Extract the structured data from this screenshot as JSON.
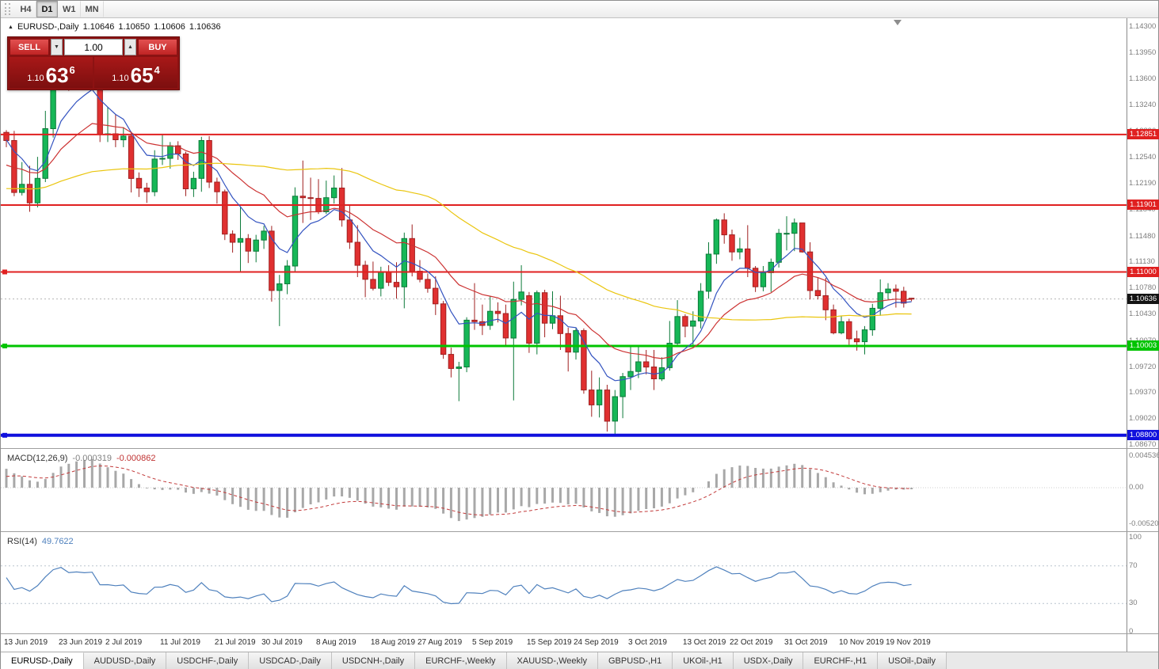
{
  "toolbar": {
    "timeframes": [
      {
        "label": "H4",
        "active": false
      },
      {
        "label": "D1",
        "active": true
      },
      {
        "label": "W1",
        "active": false
      },
      {
        "label": "MN",
        "active": false
      }
    ]
  },
  "chart_header": {
    "icon": "▲",
    "title": "EURUSD-,Daily",
    "open": "1.10646",
    "high": "1.10650",
    "low": "1.10606",
    "close": "1.10636"
  },
  "trade_panel": {
    "sell_label": "SELL",
    "buy_label": "BUY",
    "volume": "1.00",
    "volume_down_glyph": "▼",
    "volume_up_glyph": "▲",
    "sell_price": {
      "small": "1.10",
      "big": "63",
      "sup": "6"
    },
    "buy_price": {
      "small": "1.10",
      "big": "65",
      "sup": "4"
    }
  },
  "chart_data": {
    "type": "candlestick",
    "symbol": "EURUSD-",
    "period": "Daily",
    "colors": {
      "bull": "#16b757",
      "bull_border": "#0c7a39",
      "bear": "#e03030",
      "bear_border": "#a02020"
    },
    "price_axis": {
      "max": 1.143,
      "min": 1.0867,
      "ticks": [
        "1.14300",
        "1.13950",
        "1.13600",
        "1.13240",
        "1.12890",
        "1.12540",
        "1.12190",
        "1.11840",
        "1.11480",
        "1.11130",
        "1.10780",
        "1.10430",
        "1.10070",
        "1.09720",
        "1.09370",
        "1.09020",
        "1.08670"
      ]
    },
    "current_price": {
      "value": 1.10636,
      "label": "1.10636"
    },
    "levels": [
      {
        "value": 1.12851,
        "label": "1.12851",
        "color": "#e02020",
        "thickness": 2,
        "handle": false
      },
      {
        "value": 1.11901,
        "label": "1.11901",
        "color": "#e02020",
        "thickness": 2,
        "handle": false
      },
      {
        "value": 1.11,
        "label": "1.11000",
        "color": "#e02020",
        "thickness": 2,
        "handle": true
      },
      {
        "value": 1.10003,
        "label": "1.10003",
        "color": "#00c400",
        "thickness": 3,
        "handle": true
      },
      {
        "value": 1.088,
        "label": "1.08800",
        "color": "#1010dd",
        "thickness": 4,
        "handle": true
      }
    ],
    "moving_averages": [
      {
        "period": 8,
        "method": "ema",
        "color": "#3353c0"
      },
      {
        "period": 20,
        "method": "ema",
        "color": "#cc3232"
      },
      {
        "period": 50,
        "method": "sma",
        "color": "#eac50d"
      }
    ],
    "macd": {
      "name": "MACD(12,26,9)",
      "main_value": "-0.000319",
      "signal_value": "-0.000862",
      "fast": 12,
      "slow": 26,
      "signal": 9,
      "axis": [
        "0.004536",
        "0.00",
        "-0.005205"
      ],
      "histogram_color": "#a8a8a8",
      "signal_color": "#c23a3a"
    },
    "rsi": {
      "name": "RSI(14)",
      "value": "49.7622",
      "period": 14,
      "axis": [
        "100",
        "70",
        "30",
        "0"
      ],
      "guide_levels": [
        70,
        30
      ],
      "color": "#4f81bd"
    },
    "time_axis": [
      {
        "label": "13 Jun 2019",
        "i": 0
      },
      {
        "label": "23 Jun 2019",
        "i": 7
      },
      {
        "label": "2 Jul 2019",
        "i": 13
      },
      {
        "label": "11 Jul 2019",
        "i": 20
      },
      {
        "label": "21 Jul 2019",
        "i": 27
      },
      {
        "label": "30 Jul 2019",
        "i": 33
      },
      {
        "label": "8 Aug 2019",
        "i": 40
      },
      {
        "label": "18 Aug 2019",
        "i": 47
      },
      {
        "label": "27 Aug 2019",
        "i": 53
      },
      {
        "label": "5 Sep 2019",
        "i": 60
      },
      {
        "label": "15 Sep 2019",
        "i": 67
      },
      {
        "label": "24 Sep 2019",
        "i": 73
      },
      {
        "label": "3 Oct 2019",
        "i": 80
      },
      {
        "label": "13 Oct 2019",
        "i": 87
      },
      {
        "label": "22 Oct 2019",
        "i": 93
      },
      {
        "label": "31 Oct 2019",
        "i": 100
      },
      {
        "label": "10 Nov 2019",
        "i": 107
      },
      {
        "label": "19 Nov 2019",
        "i": 113
      }
    ],
    "indicator_warmup_closes": [
      1.123,
      1.1221,
      1.1215,
      1.1206,
      1.1196,
      1.1186,
      1.1191,
      1.12,
      1.121,
      1.1206,
      1.1198,
      1.1192,
      1.1181,
      1.1176,
      1.1171,
      1.1178,
      1.1185,
      1.1181,
      1.1173,
      1.1168,
      1.1175,
      1.1182,
      1.1178,
      1.117,
      1.1166,
      1.1168,
      1.1241,
      1.1253,
      1.1222,
      1.1275,
      1.1334,
      1.1312,
      1.1326,
      1.1288
    ],
    "candles": [
      [
        1.1288,
        1.1291,
        1.1268,
        1.1277
      ],
      [
        1.1277,
        1.129,
        1.1202,
        1.1207
      ],
      [
        1.1207,
        1.1248,
        1.1203,
        1.1218
      ],
      [
        1.1218,
        1.1243,
        1.1181,
        1.1193
      ],
      [
        1.1193,
        1.1255,
        1.1187,
        1.1226
      ],
      [
        1.1226,
        1.1317,
        1.1221,
        1.1293
      ],
      [
        1.1293,
        1.1378,
        1.1281,
        1.1369
      ],
      [
        1.1369,
        1.14,
        1.1345,
        1.1399
      ],
      [
        1.1399,
        1.1412,
        1.1344,
        1.1365
      ],
      [
        1.1365,
        1.1391,
        1.1351,
        1.1373
      ],
      [
        1.1373,
        1.1388,
        1.136,
        1.1368
      ],
      [
        1.1368,
        1.1394,
        1.1351,
        1.1373
      ],
      [
        1.1365,
        1.1368,
        1.1275,
        1.1285
      ],
      [
        1.1285,
        1.1322,
        1.1275,
        1.1286
      ],
      [
        1.1286,
        1.1312,
        1.1268,
        1.1278
      ],
      [
        1.1278,
        1.1295,
        1.1268,
        1.1283
      ],
      [
        1.1283,
        1.1289,
        1.1207,
        1.1226
      ],
      [
        1.1226,
        1.1234,
        1.1201,
        1.1213
      ],
      [
        1.1213,
        1.122,
        1.1193,
        1.1208
      ],
      [
        1.1208,
        1.1264,
        1.1202,
        1.1252
      ],
      [
        1.1252,
        1.1286,
        1.1244,
        1.1253
      ],
      [
        1.1253,
        1.1275,
        1.1239,
        1.127
      ],
      [
        1.127,
        1.1276,
        1.1251,
        1.1259
      ],
      [
        1.1259,
        1.1262,
        1.1202,
        1.1212
      ],
      [
        1.1212,
        1.1235,
        1.1201,
        1.1226
      ],
      [
        1.1226,
        1.1282,
        1.1208,
        1.1277
      ],
      [
        1.1277,
        1.1283,
        1.1213,
        1.1221
      ],
      [
        1.1221,
        1.1227,
        1.1192,
        1.1208
      ],
      [
        1.1208,
        1.1211,
        1.1143,
        1.1151
      ],
      [
        1.1151,
        1.1156,
        1.1126,
        1.114
      ],
      [
        1.114,
        1.1187,
        1.1101,
        1.1145
      ],
      [
        1.1145,
        1.1151,
        1.1112,
        1.1128
      ],
      [
        1.1128,
        1.115,
        1.1113,
        1.1143
      ],
      [
        1.1143,
        1.1162,
        1.1131,
        1.1155
      ],
      [
        1.1155,
        1.1162,
        1.106,
        1.1075
      ],
      [
        1.1075,
        1.1096,
        1.1027,
        1.1084
      ],
      [
        1.1084,
        1.1116,
        1.107,
        1.1108
      ],
      [
        1.1108,
        1.1214,
        1.1101,
        1.1202
      ],
      [
        1.1202,
        1.125,
        1.1166,
        1.12
      ],
      [
        1.12,
        1.1227,
        1.117,
        1.1199
      ],
      [
        1.1199,
        1.1225,
        1.1178,
        1.1181
      ],
      [
        1.1181,
        1.1223,
        1.1178,
        1.12
      ],
      [
        1.12,
        1.123,
        1.1192,
        1.1213
      ],
      [
        1.1213,
        1.124,
        1.1161,
        1.117
      ],
      [
        1.117,
        1.1191,
        1.1131,
        1.114
      ],
      [
        1.114,
        1.1163,
        1.1093,
        1.1109
      ],
      [
        1.1109,
        1.1115,
        1.1066,
        1.109
      ],
      [
        1.109,
        1.1114,
        1.1075,
        1.1078
      ],
      [
        1.1078,
        1.1107,
        1.1067,
        1.11
      ],
      [
        1.11,
        1.1109,
        1.1081,
        1.1086
      ],
      [
        1.1086,
        1.1113,
        1.1064,
        1.108
      ],
      [
        1.108,
        1.1153,
        1.1051,
        1.1145
      ],
      [
        1.1145,
        1.1164,
        1.1094,
        1.1101
      ],
      [
        1.1101,
        1.1116,
        1.1086,
        1.109
      ],
      [
        1.109,
        1.1098,
        1.1072,
        1.1078
      ],
      [
        1.1078,
        1.1094,
        1.1042,
        1.1057
      ],
      [
        1.1057,
        1.1061,
        1.0983,
        1.0989
      ],
      [
        1.0989,
        1.0998,
        1.0958,
        1.097
      ],
      [
        1.097,
        1.0979,
        1.0926,
        1.0972
      ],
      [
        1.0972,
        1.1039,
        1.0965,
        1.1035
      ],
      [
        1.1035,
        1.1085,
        1.1022,
        1.1033
      ],
      [
        1.1033,
        1.1056,
        1.1015,
        1.1028
      ],
      [
        1.1028,
        1.1067,
        1.1022,
        1.1047
      ],
      [
        1.1047,
        1.1059,
        1.1032,
        1.1044
      ],
      [
        1.1044,
        1.1056,
        1.0999,
        1.1011
      ],
      [
        1.1011,
        1.1087,
        1.0927,
        1.1063
      ],
      [
        1.1063,
        1.1109,
        1.1055,
        1.1073
      ],
      [
        1.1068,
        1.1073,
        1.0991,
        1.1004
      ],
      [
        1.1004,
        1.1075,
        1.0989,
        1.1072
      ],
      [
        1.1072,
        1.1076,
        1.1012,
        1.1031
      ],
      [
        1.1031,
        1.1074,
        1.1023,
        1.1041
      ],
      [
        1.1041,
        1.1068,
        1.0995,
        1.1017
      ],
      [
        1.1017,
        1.1025,
        1.0966,
        1.0992
      ],
      [
        1.0992,
        1.1024,
        1.0982,
        1.1021
      ],
      [
        1.1021,
        1.1024,
        1.0936,
        1.0941
      ],
      [
        1.0941,
        1.0967,
        1.0905,
        1.0921
      ],
      [
        1.0921,
        1.0958,
        1.0904,
        1.0941
      ],
      [
        1.0941,
        1.0948,
        1.0885,
        1.0899
      ],
      [
        1.0899,
        1.0941,
        1.0879,
        1.0932
      ],
      [
        1.0932,
        1.0964,
        1.0903,
        1.0959
      ],
      [
        1.0959,
        1.0999,
        1.0941,
        1.0966
      ],
      [
        1.0966,
        1.0999,
        1.0957,
        1.0979
      ],
      [
        1.0979,
        1.0995,
        1.0962,
        1.0972
      ],
      [
        1.0972,
        1.0995,
        1.0941,
        1.0956
      ],
      [
        1.0956,
        1.0985,
        1.0953,
        1.0971
      ],
      [
        1.0971,
        1.1034,
        1.0967,
        1.1004
      ],
      [
        1.1004,
        1.1062,
        1.1002,
        1.104
      ],
      [
        1.104,
        1.1043,
        1.1012,
        1.1027
      ],
      [
        1.1027,
        1.1047,
        1.1001,
        1.1034
      ],
      [
        1.1034,
        1.1085,
        1.1024,
        1.1074
      ],
      [
        1.1074,
        1.114,
        1.1064,
        1.1124
      ],
      [
        1.1124,
        1.1172,
        1.1111,
        1.117
      ],
      [
        1.117,
        1.1179,
        1.1138,
        1.115
      ],
      [
        1.115,
        1.1157,
        1.1115,
        1.1127
      ],
      [
        1.1127,
        1.1146,
        1.1117,
        1.1131
      ],
      [
        1.1131,
        1.1163,
        1.1093,
        1.1105
      ],
      [
        1.1105,
        1.1108,
        1.1073,
        1.108
      ],
      [
        1.108,
        1.1108,
        1.1074,
        1.1099
      ],
      [
        1.1099,
        1.1118,
        1.1073,
        1.1113
      ],
      [
        1.1113,
        1.1158,
        1.1106,
        1.1152
      ],
      [
        1.1152,
        1.1175,
        1.1129,
        1.1152
      ],
      [
        1.1152,
        1.1172,
        1.1128,
        1.1166
      ],
      [
        1.1166,
        1.1166,
        1.1126,
        1.1127
      ],
      [
        1.1127,
        1.114,
        1.1063,
        1.1075
      ],
      [
        1.1075,
        1.1093,
        1.1063,
        1.1068
      ],
      [
        1.1068,
        1.1092,
        1.1035,
        1.1049
      ],
      [
        1.1049,
        1.1056,
        1.1016,
        1.1018
      ],
      [
        1.1018,
        1.1041,
        1.1016,
        1.1033
      ],
      [
        1.1033,
        1.1037,
        1.1002,
        1.101
      ],
      [
        1.101,
        1.1021,
        1.0994,
        1.1006
      ],
      [
        1.1006,
        1.1027,
        1.0989,
        1.1022
      ],
      [
        1.1022,
        1.1057,
        1.1014,
        1.1051
      ],
      [
        1.1051,
        1.109,
        1.1041,
        1.1072
      ],
      [
        1.1072,
        1.1085,
        1.1063,
        1.1077
      ],
      [
        1.1077,
        1.1083,
        1.1052,
        1.1074
      ],
      [
        1.1074,
        1.108,
        1.1052,
        1.1058
      ],
      [
        1.10646,
        1.1065,
        1.10606,
        1.10636
      ]
    ]
  },
  "tabs": [
    {
      "label": "EURUSD-,Daily",
      "active": true
    },
    {
      "label": "AUDUSD-,Daily",
      "active": false
    },
    {
      "label": "USDCHF-,Daily",
      "active": false
    },
    {
      "label": "USDCAD-,Daily",
      "active": false
    },
    {
      "label": "USDCNH-,Daily",
      "active": false
    },
    {
      "label": "EURCHF-,Weekly",
      "active": false
    },
    {
      "label": "XAUUSD-,Weekly",
      "active": false
    },
    {
      "label": "GBPUSD-,H1",
      "active": false
    },
    {
      "label": "UKOil-,H1",
      "active": false
    },
    {
      "label": "USDX-,Daily",
      "active": false
    },
    {
      "label": "EURCHF-,H1",
      "active": false
    },
    {
      "label": "USOil-,Daily",
      "active": false
    }
  ]
}
